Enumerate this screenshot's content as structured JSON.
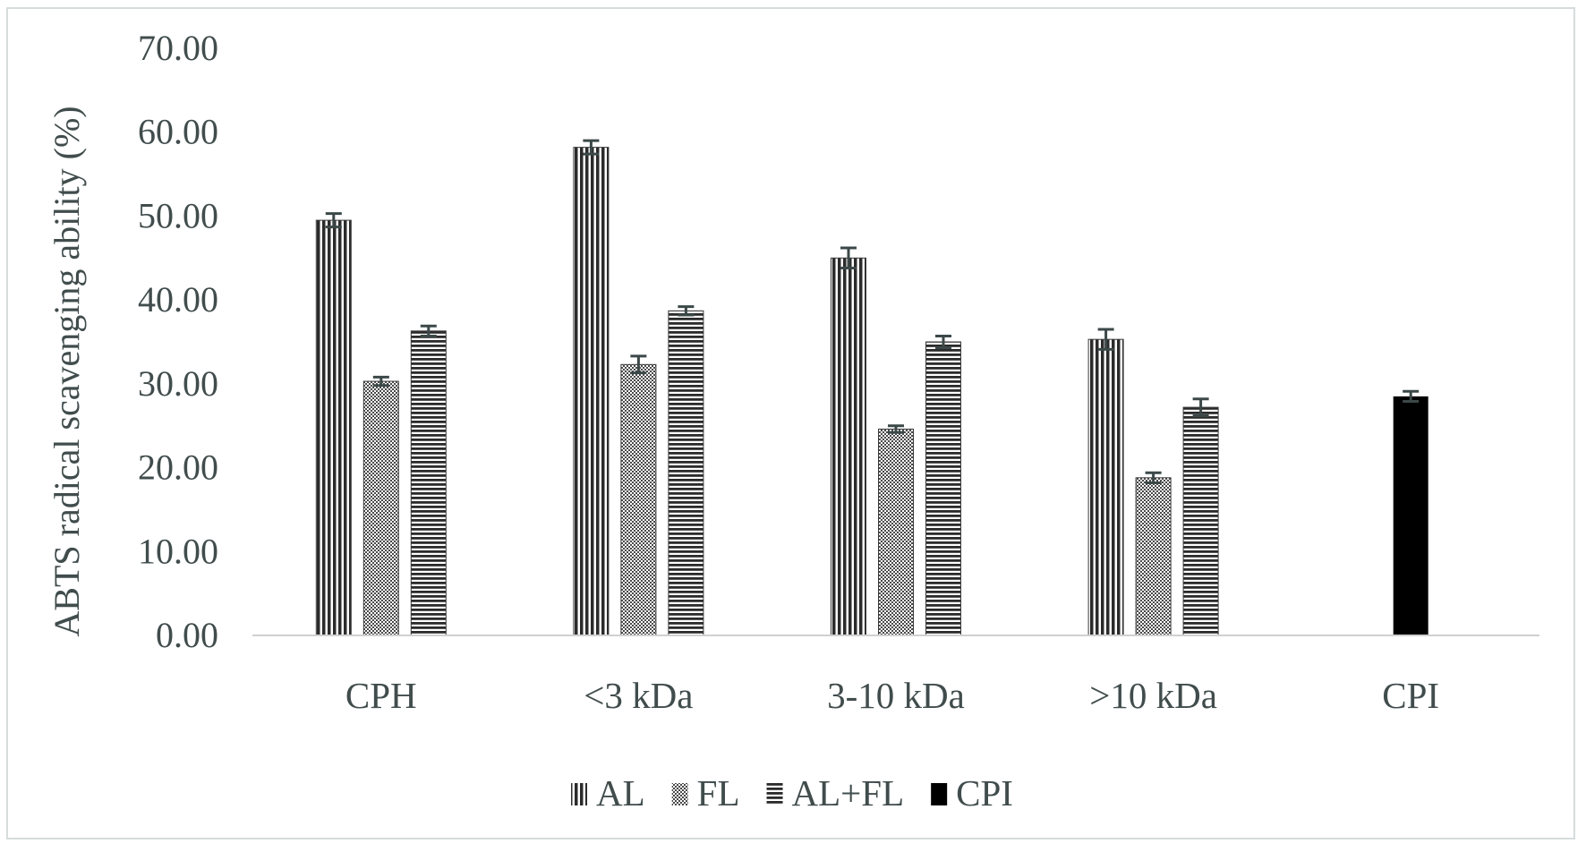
{
  "chart_data": {
    "type": "bar",
    "title": "",
    "xlabel": "",
    "ylabel": "ABTS radical scavenging ability (%)",
    "ylim": [
      0,
      70
    ],
    "yticks": [
      "0.00",
      "10.00",
      "20.00",
      "30.00",
      "40.00",
      "50.00",
      "60.00",
      "70.00"
    ],
    "grid": false,
    "legend_position": "bottom",
    "categories": [
      "CPH",
      "<3 kDa",
      "3-10 kDa",
      ">10 kDa",
      "CPI"
    ],
    "series": [
      {
        "name": "AL",
        "pattern": "vertical-stripes",
        "color": "#2b2b2b",
        "values": [
          49.5,
          58.2,
          45.0,
          35.3,
          null
        ],
        "errors": [
          0.8,
          0.8,
          1.2,
          1.2,
          null
        ]
      },
      {
        "name": "FL",
        "pattern": "dots",
        "color": "#5a5a5a",
        "values": [
          30.3,
          32.3,
          24.6,
          18.8,
          null
        ],
        "errors": [
          0.5,
          1.0,
          0.4,
          0.6,
          null
        ]
      },
      {
        "name": "AL+FL",
        "pattern": "horizontal-stripes",
        "color": "#2b2b2b",
        "values": [
          36.3,
          38.7,
          35.0,
          27.2,
          null
        ],
        "errors": [
          0.6,
          0.5,
          0.7,
          1.0,
          null
        ]
      },
      {
        "name": "CPI",
        "pattern": "solid",
        "color": "#000000",
        "values": [
          null,
          null,
          null,
          null,
          28.5
        ],
        "errors": [
          null,
          null,
          null,
          null,
          0.6
        ]
      }
    ]
  }
}
